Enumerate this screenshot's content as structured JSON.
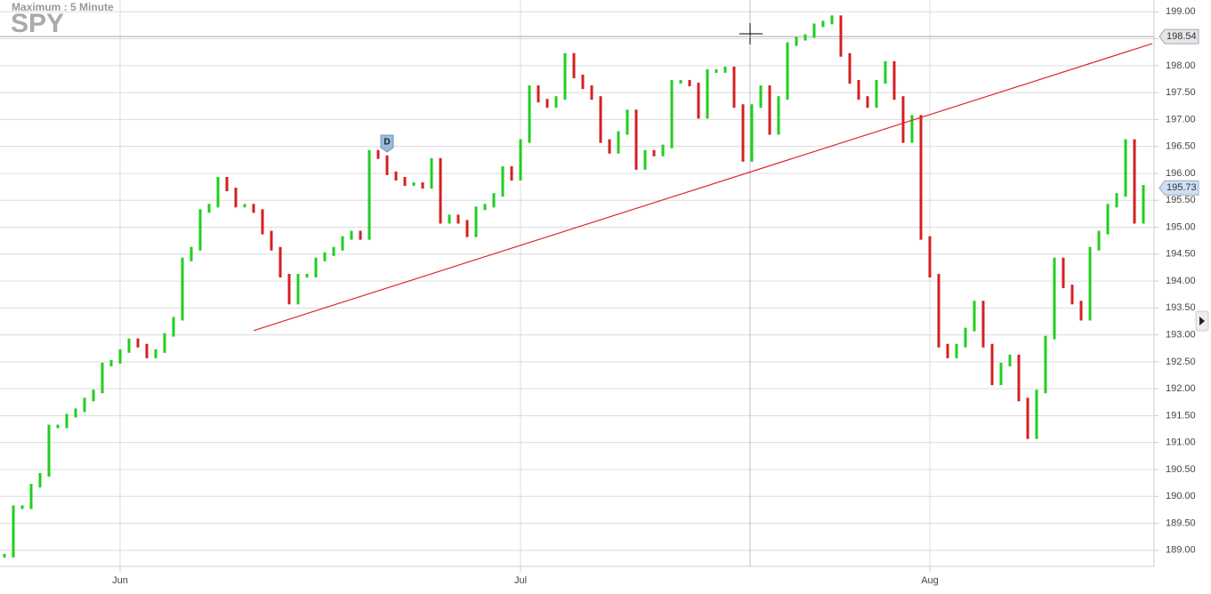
{
  "chart_data": {
    "type": "candlestick",
    "title": "SPY",
    "subtitle": "Maximum : 5 Minute",
    "up_color": "#1fcf1f",
    "down_color": "#d42020",
    "values": [
      188.9,
      189.8,
      189.8,
      190.2,
      190.4,
      191.3,
      191.3,
      191.5,
      191.6,
      191.8,
      191.95,
      192.45,
      192.5,
      192.7,
      192.9,
      192.8,
      192.6,
      192.7,
      193.0,
      193.3,
      194.4,
      194.6,
      195.3,
      195.4,
      195.9,
      195.7,
      195.4,
      195.4,
      195.3,
      194.9,
      194.6,
      194.1,
      193.6,
      194.1,
      194.1,
      194.4,
      194.5,
      194.6,
      194.8,
      194.9,
      194.8,
      196.4,
      196.3,
      196.0,
      195.9,
      195.8,
      195.8,
      195.75,
      196.25,
      195.1,
      195.2,
      195.1,
      194.85,
      195.35,
      195.4,
      195.6,
      196.1,
      195.9,
      196.6,
      197.6,
      197.35,
      197.25,
      197.4,
      198.2,
      197.8,
      197.6,
      197.4,
      196.6,
      196.4,
      196.75,
      197.15,
      196.1,
      196.4,
      196.35,
      196.5,
      197.7,
      197.7,
      197.65,
      197.05,
      197.9,
      197.9,
      197.95,
      197.25,
      196.25,
      197.25,
      197.6,
      196.75,
      197.4,
      198.4,
      198.5,
      198.55,
      198.75,
      198.8,
      198.9,
      198.2,
      197.7,
      197.4,
      197.25,
      197.7,
      198.05,
      197.4,
      196.6,
      197.05,
      194.8,
      194.1,
      192.8,
      192.6,
      192.8,
      193.1,
      193.6,
      192.8,
      192.1,
      192.45,
      192.6,
      191.8,
      191.1,
      191.95,
      192.95,
      194.4,
      193.9,
      193.6,
      193.3,
      194.6,
      194.9,
      195.4,
      195.6,
      196.6,
      195.1,
      195.75
    ],
    "xticks": [
      {
        "value": 13,
        "label": "Jun"
      },
      {
        "value": 58,
        "label": "Jul"
      },
      {
        "value": 104,
        "label": "Aug"
      }
    ],
    "ylim": [
      188.7,
      199.17
    ],
    "yticks": [
      {
        "value": 189,
        "label": "189.00"
      },
      {
        "value": 189.5,
        "label": "189.50"
      },
      {
        "value": 190,
        "label": "190.00"
      },
      {
        "value": 190.5,
        "label": "190.50"
      },
      {
        "value": 191,
        "label": "191.00"
      },
      {
        "value": 191.5,
        "label": "191.50"
      },
      {
        "value": 192,
        "label": "192.00"
      },
      {
        "value": 192.5,
        "label": "192.50"
      },
      {
        "value": 193,
        "label": "193.00"
      },
      {
        "value": 193.5,
        "label": "193.50"
      },
      {
        "value": 194,
        "label": "194.00"
      },
      {
        "value": 194.5,
        "label": "194.50"
      },
      {
        "value": 195,
        "label": "195.00"
      },
      {
        "value": 195.5,
        "label": "195.50"
      },
      {
        "value": 196,
        "label": "196.00"
      },
      {
        "value": 196.5,
        "label": "196.50"
      },
      {
        "value": 197,
        "label": "197.00"
      },
      {
        "value": 197.5,
        "label": "197.50"
      },
      {
        "value": 198,
        "label": "198.00"
      },
      {
        "value": 198.5,
        "label": "198.50"
      },
      {
        "value": 199,
        "label": "199.00"
      }
    ],
    "grid": true,
    "price_lines": [
      {
        "value": 198.54,
        "label": "198.54",
        "color": "#e6e6e6"
      },
      {
        "value": 195.73,
        "label": "195.73",
        "color": "#cfe0f5"
      }
    ],
    "trendline": {
      "x": [
        28,
        129
      ],
      "y": [
        193.08,
        198.41
      ],
      "color": "#e0262b"
    },
    "events": [
      {
        "label": "D",
        "x": 43
      }
    ]
  }
}
